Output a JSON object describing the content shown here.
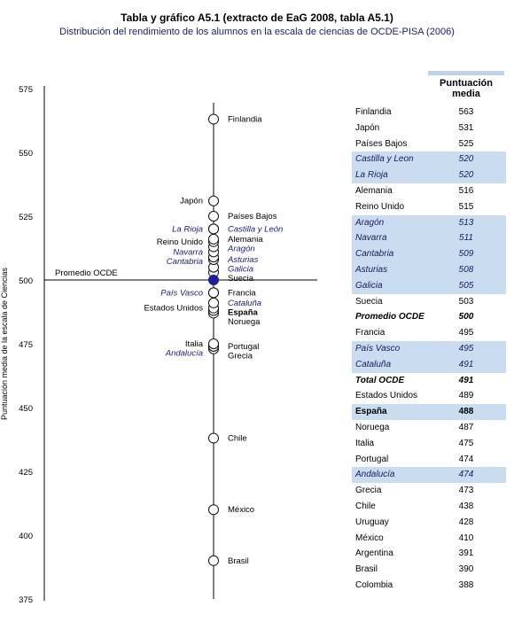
{
  "header": {
    "title": "Tabla y gráfico A5.1 (extracto de EaG 2008, tabla A5.1)",
    "subtitle": "Distribución del rendimiento de los alumnos en la escala de ciencias de OCDE-PISA (2006)"
  },
  "chart_data": {
    "type": "scatter",
    "ylabel": "Puntuación media de la escala de Ciencias",
    "ylim": [
      375,
      575
    ],
    "yticks": [
      375,
      400,
      425,
      450,
      475,
      500,
      525,
      550,
      575
    ],
    "reference_line": {
      "label": "Promedio OCDE",
      "value": 500
    },
    "colors": {
      "marker": "#ffffff",
      "highlight": "#1f1f9c",
      "region_label": "#1a1a7a"
    },
    "points": [
      {
        "name": "Finlandia",
        "value": 563,
        "side": "right",
        "region": false
      },
      {
        "name": "Japón",
        "value": 531,
        "side": "left",
        "region": false
      },
      {
        "name": "Países Bajos",
        "value": 525,
        "side": "right",
        "region": false
      },
      {
        "name": "Castilla y León",
        "value": 520,
        "side": "right",
        "region": true
      },
      {
        "name": "La Rioja",
        "value": 520,
        "side": "left",
        "region": true
      },
      {
        "name": "Alemania",
        "value": 516,
        "side": "right",
        "region": false
      },
      {
        "name": "Reino Unido",
        "value": 515,
        "side": "left",
        "region": false
      },
      {
        "name": "Aragón",
        "value": 513,
        "side": "right",
        "region": true
      },
      {
        "name": "Navarra",
        "value": 511,
        "side": "left",
        "region": true
      },
      {
        "name": "Asturias",
        "value": 508,
        "side": "right",
        "region": true
      },
      {
        "name": "Cantabria",
        "value": 509,
        "side": "left",
        "region": true
      },
      {
        "name": "Galicia",
        "value": 505,
        "side": "right",
        "region": true
      },
      {
        "name": "Suecia",
        "value": 503,
        "side": "right",
        "region": false
      },
      {
        "name": "Francia",
        "value": 495,
        "side": "right",
        "region": false
      },
      {
        "name": "País Vasco",
        "value": 495,
        "side": "left",
        "region": true
      },
      {
        "name": "Cataluña",
        "value": 491,
        "side": "right",
        "region": true
      },
      {
        "name": "Estados Unidos",
        "value": 489,
        "side": "left",
        "region": false
      },
      {
        "name": "España",
        "value": 488,
        "side": "right",
        "region": false,
        "bold": true
      },
      {
        "name": "Noruega",
        "value": 487,
        "side": "right",
        "region": false
      },
      {
        "name": "Italia",
        "value": 475,
        "side": "left",
        "region": false
      },
      {
        "name": "Andalucía",
        "value": 474,
        "side": "left",
        "region": true
      },
      {
        "name": "Portugal",
        "value": 474,
        "side": "right",
        "region": false
      },
      {
        "name": "Grecia",
        "value": 473,
        "side": "right",
        "region": false
      },
      {
        "name": "Chile",
        "value": 438,
        "side": "right",
        "region": false
      },
      {
        "name": "México",
        "value": 410,
        "side": "right",
        "region": false
      },
      {
        "name": "Brasil",
        "value": 390,
        "side": "right",
        "region": false
      }
    ],
    "oecd_average_marker": {
      "value": 500
    }
  },
  "table": {
    "header": "Puntuación media",
    "rows": [
      {
        "name": "Finlandia",
        "value": "563",
        "hl": false,
        "it": false,
        "bo": false
      },
      {
        "name": "Japón",
        "value": "531",
        "hl": false,
        "it": false,
        "bo": false
      },
      {
        "name": "Países Bajos",
        "value": "525",
        "hl": false,
        "it": false,
        "bo": false
      },
      {
        "name": "Castilla y Leon",
        "value": "520",
        "hl": true,
        "it": true,
        "bo": false
      },
      {
        "name": "La Rioja",
        "value": "520",
        "hl": true,
        "it": true,
        "bo": false
      },
      {
        "name": "Alemania",
        "value": "516",
        "hl": false,
        "it": false,
        "bo": false
      },
      {
        "name": "Reino Unido",
        "value": "515",
        "hl": false,
        "it": false,
        "bo": false
      },
      {
        "name": "Aragón",
        "value": "513",
        "hl": true,
        "it": true,
        "bo": false
      },
      {
        "name": "Navarra",
        "value": "511",
        "hl": true,
        "it": true,
        "bo": false
      },
      {
        "name": "Cantabria",
        "value": "509",
        "hl": true,
        "it": true,
        "bo": false
      },
      {
        "name": "Asturias",
        "value": "508",
        "hl": true,
        "it": true,
        "bo": false
      },
      {
        "name": "Galicia",
        "value": "505",
        "hl": true,
        "it": true,
        "bo": false
      },
      {
        "name": "Suecia",
        "value": "503",
        "hl": false,
        "it": false,
        "bo": false
      },
      {
        "name": "Promedio OCDE",
        "value": "500",
        "hl": false,
        "it": true,
        "bo": true
      },
      {
        "name": "Francia",
        "value": "495",
        "hl": false,
        "it": false,
        "bo": false
      },
      {
        "name": "País Vasco",
        "value": "495",
        "hl": true,
        "it": true,
        "bo": false
      },
      {
        "name": "Cataluña",
        "value": "491",
        "hl": true,
        "it": true,
        "bo": false
      },
      {
        "name": "Total OCDE",
        "value": "491",
        "hl": false,
        "it": true,
        "bo": true
      },
      {
        "name": "Estados Unidos",
        "value": "489",
        "hl": false,
        "it": false,
        "bo": false
      },
      {
        "name": "España",
        "value": "488",
        "hl": true,
        "it": false,
        "bo": true
      },
      {
        "name": "Noruega",
        "value": "487",
        "hl": false,
        "it": false,
        "bo": false
      },
      {
        "name": "Italia",
        "value": "475",
        "hl": false,
        "it": false,
        "bo": false
      },
      {
        "name": "Portugal",
        "value": "474",
        "hl": false,
        "it": false,
        "bo": false
      },
      {
        "name": "Andalucía",
        "value": "474",
        "hl": true,
        "it": true,
        "bo": false
      },
      {
        "name": "Grecia",
        "value": "473",
        "hl": false,
        "it": false,
        "bo": false
      },
      {
        "name": "Chile",
        "value": "438",
        "hl": false,
        "it": false,
        "bo": false
      },
      {
        "name": "Uruguay",
        "value": "428",
        "hl": false,
        "it": false,
        "bo": false
      },
      {
        "name": "México",
        "value": "410",
        "hl": false,
        "it": false,
        "bo": false
      },
      {
        "name": "Argentina",
        "value": "391",
        "hl": false,
        "it": false,
        "bo": false
      },
      {
        "name": "Brasil",
        "value": "390",
        "hl": false,
        "it": false,
        "bo": false
      },
      {
        "name": "Colombia",
        "value": "388",
        "hl": false,
        "it": false,
        "bo": false
      }
    ]
  }
}
